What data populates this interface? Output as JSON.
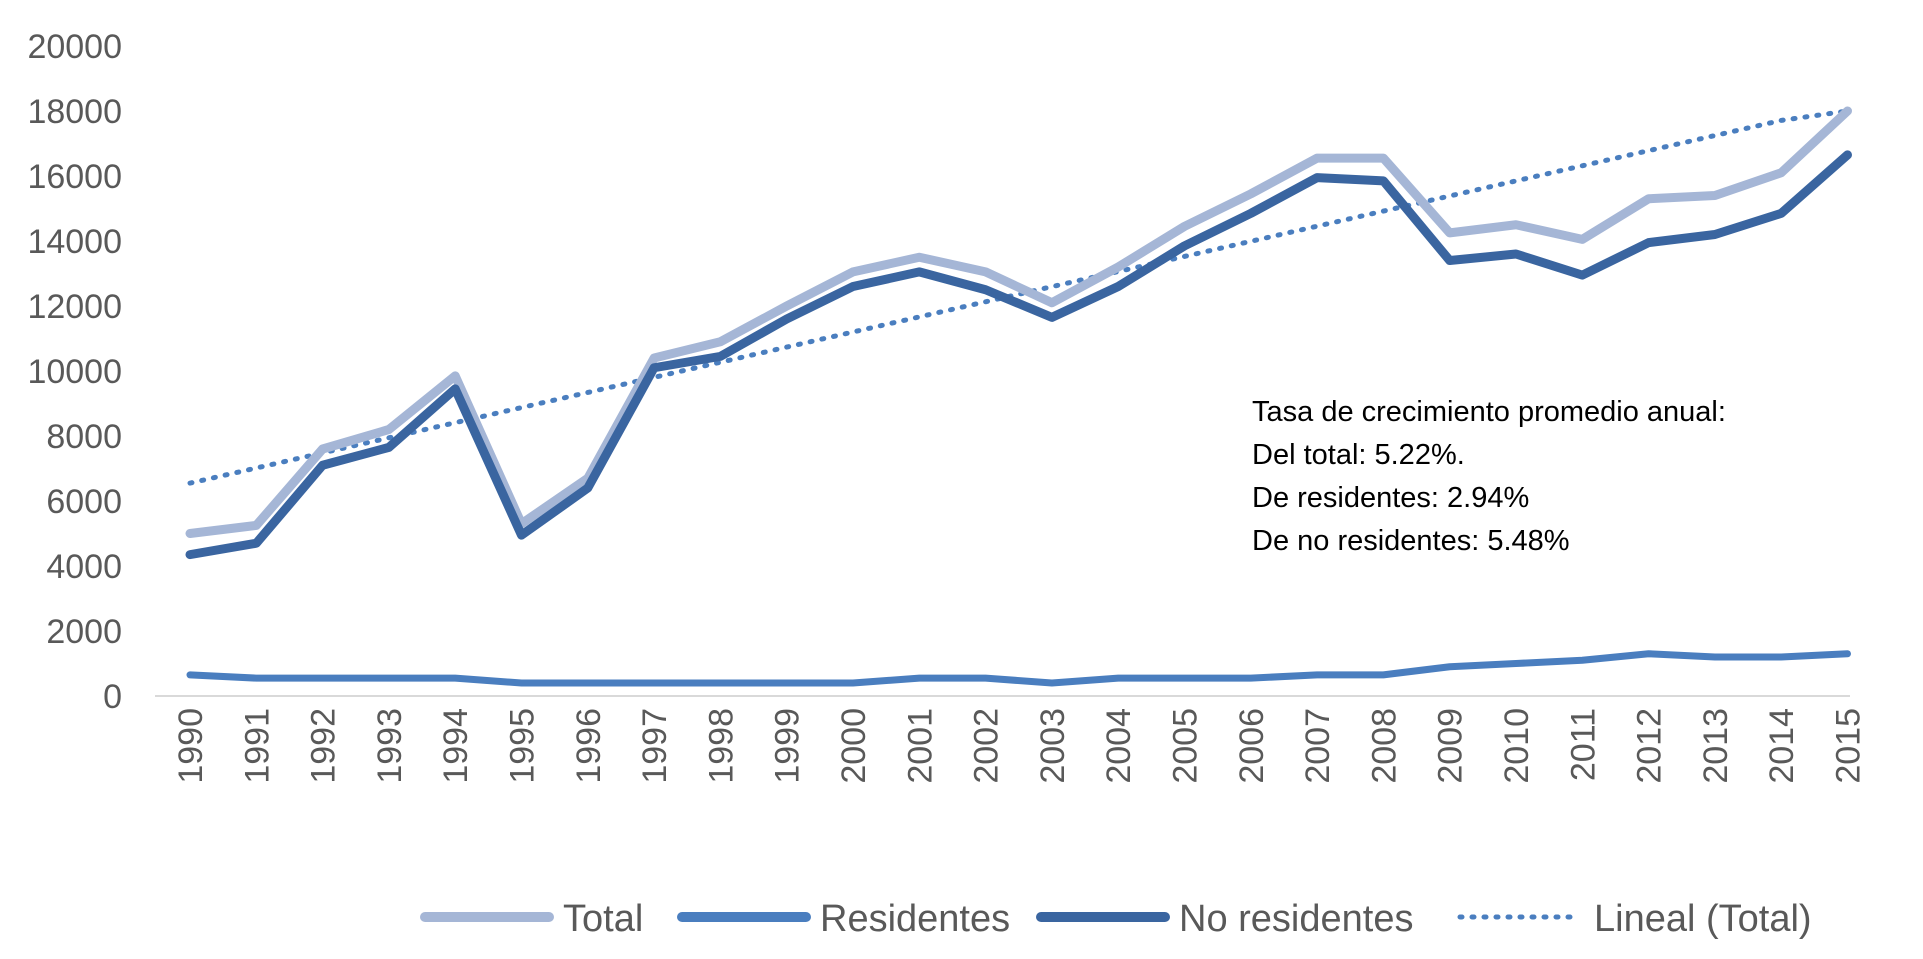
{
  "chart_data": {
    "type": "line",
    "title": "",
    "xlabel": "",
    "ylabel": "",
    "ylim": [
      0,
      20000
    ],
    "yticks": [
      "0",
      "2000",
      "4000",
      "6000",
      "8000",
      "10000",
      "12000",
      "14000",
      "16000",
      "18000",
      "20000"
    ],
    "grid": false,
    "legend_position": "bottom",
    "categories": [
      "1990",
      "1991",
      "1992",
      "1993",
      "1994",
      "1995",
      "1996",
      "1997",
      "1998",
      "1999",
      "2000",
      "2001",
      "2002",
      "2003",
      "2004",
      "2005",
      "2006",
      "2007",
      "2008",
      "2009",
      "2010",
      "2011",
      "2012",
      "2013",
      "2014",
      "2015"
    ],
    "series": [
      {
        "name": "Total",
        "color": "#a5b6d6",
        "style": "solid",
        "values": [
          5000,
          5250,
          7600,
          8200,
          9850,
          5300,
          6700,
          10400,
          10900,
          12000,
          13050,
          13500,
          13050,
          12100,
          13200,
          14450,
          15450,
          16550,
          16550,
          14250,
          14500,
          14050,
          15300,
          15400,
          16100,
          18000
        ]
      },
      {
        "name": "Residentes",
        "color": "#4a7ebf",
        "style": "solid",
        "values": [
          650,
          550,
          550,
          550,
          550,
          400,
          400,
          400,
          400,
          400,
          400,
          550,
          550,
          400,
          550,
          550,
          550,
          650,
          650,
          900,
          1000,
          1100,
          1300,
          1200,
          1200,
          1300
        ]
      },
      {
        "name": "No residentes",
        "color": "#3a65a0",
        "style": "solid",
        "values": [
          4350,
          4700,
          7100,
          7650,
          9450,
          4950,
          6400,
          10100,
          10450,
          11600,
          12600,
          13050,
          12500,
          11650,
          12600,
          13850,
          14850,
          15950,
          15850,
          13400,
          13600,
          12950,
          13950,
          14200,
          14850,
          16650
        ]
      },
      {
        "name": "Lineal (Total)",
        "color": "#4a7ebf",
        "style": "dotted",
        "values": [
          6550,
          7015,
          7480,
          7945,
          8410,
          8875,
          9340,
          9805,
          10270,
          10735,
          11200,
          11665,
          12130,
          12595,
          13060,
          13525,
          13990,
          14455,
          14920,
          15385,
          15850,
          16315,
          16780,
          17245,
          17710,
          18000
        ]
      }
    ],
    "annotation": {
      "lines": [
        "Tasa de crecimiento  promedio anual:",
        "Del total: 5.22%.",
        "De residentes:  2.94%",
        "De no residentes:  5.48%"
      ]
    }
  }
}
